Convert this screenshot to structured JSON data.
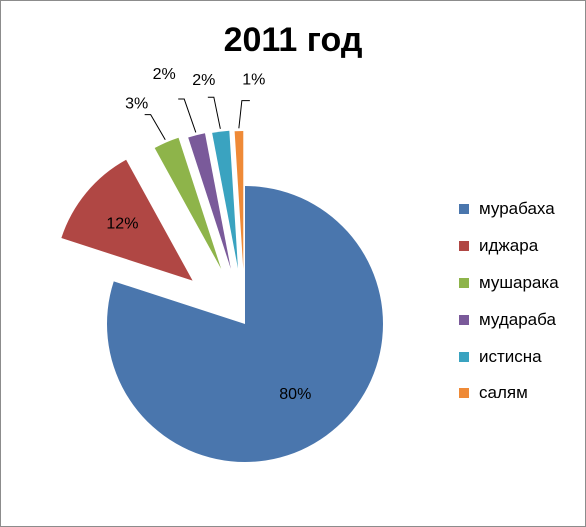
{
  "chart_data": {
    "type": "pie",
    "title": "2011 год",
    "categories": [
      "мурабаха",
      "иджара",
      "мушарака",
      "мудараба",
      "истисна",
      "салям"
    ],
    "values": [
      80,
      12,
      3,
      2,
      2,
      1
    ],
    "labels": [
      "80%",
      "12%",
      "3%",
      "2%",
      "2%",
      "1%"
    ],
    "colors": [
      "#4a76ad",
      "#b04744",
      "#8eb44a",
      "#7a5a9a",
      "#3aa3c0",
      "#ef8a37"
    ],
    "legend_position": "right"
  }
}
